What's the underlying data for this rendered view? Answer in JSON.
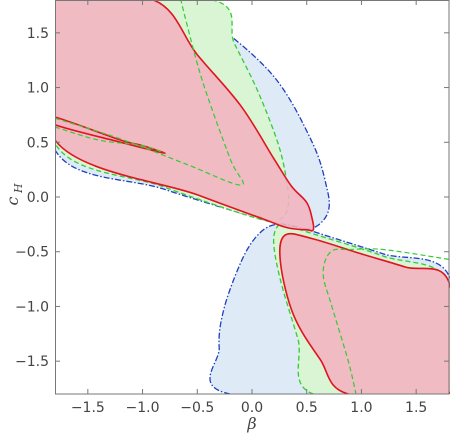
{
  "chart_data": {
    "type": "contour",
    "xlabel": "β",
    "ylabel_main": "c",
    "ylabel_sub": "H",
    "xlim": [
      -1.8,
      1.8
    ],
    "ylim": [
      -1.8,
      1.8
    ],
    "xticks": [
      -1.5,
      -1.0,
      -0.5,
      0.0,
      0.5,
      1.0,
      1.5
    ],
    "xtick_labels": [
      "−1.5",
      "−1.0",
      "−0.5",
      "0.0",
      "0.5",
      "1.0",
      "1.5"
    ],
    "yticks": [
      1.5,
      1.0,
      0.5,
      0.0,
      -0.5,
      -1.0,
      -1.5
    ],
    "ytick_labels": [
      "1.5",
      "1.0",
      "0.5",
      "0.0",
      "−0.5",
      "−1.0",
      "−1.5"
    ],
    "grid": false,
    "regions": [
      {
        "id": "blue",
        "fill": "#deebf7",
        "stroke": "#1f3fbf",
        "dash": "6,2,1.5,2",
        "polygons": [
          [
            [
              -1.8,
              1.8
            ],
            [
              -0.73,
              1.8
            ],
            [
              -0.36,
              1.6
            ],
            [
              0.2,
              1.1
            ],
            [
              0.55,
              0.5
            ],
            [
              0.68,
              0.1
            ],
            [
              0.7,
              -0.12
            ],
            [
              0.6,
              -0.26
            ],
            [
              0.45,
              -0.29
            ],
            [
              0.15,
              -0.22
            ],
            [
              -0.8,
              0.07
            ],
            [
              -1.8,
              0.43
            ]
          ],
          [
            [
              -0.2,
              -1.8
            ],
            [
              -0.3,
              -1.38
            ],
            [
              -0.25,
              -1.0
            ],
            [
              -0.08,
              -0.55
            ],
            [
              0.07,
              -0.33
            ],
            [
              0.22,
              -0.25
            ],
            [
              0.4,
              -0.27
            ],
            [
              0.7,
              -0.36
            ],
            [
              1.2,
              -0.52
            ],
            [
              1.8,
              -0.72
            ],
            [
              1.8,
              -1.8
            ]
          ]
        ]
      },
      {
        "id": "green",
        "fill": "#d9f5d4",
        "stroke": "#33cc33",
        "dash": "5,3",
        "polygons": [
          [
            [
              -1.8,
              1.8
            ],
            [
              -0.36,
              1.8
            ],
            [
              -0.16,
              1.4
            ],
            [
              0.06,
              0.95
            ],
            [
              0.25,
              0.45
            ],
            [
              0.33,
              0.05
            ],
            [
              0.32,
              -0.12
            ],
            [
              0.26,
              -0.2
            ],
            [
              0.1,
              -0.21
            ],
            [
              -0.8,
              0.09
            ],
            [
              -1.8,
              0.49
            ]
          ],
          [
            [
              0.56,
              -1.8
            ],
            [
              0.42,
              -1.3
            ],
            [
              0.27,
              -0.8
            ],
            [
              0.2,
              -0.45
            ],
            [
              0.22,
              -0.29
            ],
            [
              0.3,
              -0.26
            ],
            [
              0.6,
              -0.35
            ],
            [
              1.2,
              -0.54
            ],
            [
              1.8,
              -0.78
            ],
            [
              1.8,
              -1.8
            ]
          ]
        ]
      },
      {
        "id": "red",
        "fill": "#f4b3c0",
        "fill_opacity": 0.88,
        "stroke": "#e0141e",
        "dash": "",
        "polygons": [
          [
            [
              -1.8,
              1.8
            ],
            [
              -0.9,
              1.8
            ],
            [
              -0.5,
              1.3
            ],
            [
              -0.1,
              0.83
            ],
            [
              0.2,
              0.35
            ],
            [
              0.36,
              0.1
            ],
            [
              0.5,
              -0.05
            ],
            [
              0.55,
              -0.2
            ],
            [
              0.56,
              -0.3
            ],
            [
              0.5,
              -0.3
            ],
            [
              0.32,
              -0.28
            ],
            [
              0.1,
              -0.2
            ],
            [
              -0.5,
              0.02
            ],
            [
              -1.8,
              0.52
            ]
          ],
          [
            [
              0.88,
              -1.8
            ],
            [
              0.62,
              -1.48
            ],
            [
              0.38,
              -1.08
            ],
            [
              0.26,
              -0.6
            ],
            [
              0.3,
              -0.35
            ],
            [
              0.55,
              -0.38
            ],
            [
              1.0,
              -0.52
            ],
            [
              1.4,
              -0.64
            ],
            [
              1.8,
              -0.78
            ],
            [
              1.8,
              -1.8
            ]
          ],
          [
            [
              -1.8,
              0.73
            ],
            [
              -1.2,
              0.52
            ],
            [
              -1.0,
              0.47
            ],
            [
              -0.8,
              0.4
            ],
            [
              -1.2,
              0.5
            ],
            [
              -1.8,
              0.66
            ]
          ]
        ]
      }
    ],
    "contours": [
      {
        "id": "green-inner-contour",
        "stroke": "#33cc33",
        "dash": "5,3",
        "points": [
          [
            -1.8,
            0.72
          ],
          [
            -1.2,
            0.53
          ],
          [
            -0.6,
            0.3
          ],
          [
            -0.1,
            0.11
          ],
          [
            -0.2,
            0.35
          ],
          [
            -0.45,
            1.05
          ],
          [
            -0.6,
            1.6
          ],
          [
            -0.65,
            1.8
          ]
        ]
      },
      {
        "id": "green-inner-contour-lower",
        "stroke": "#33cc33",
        "dash": "5,3",
        "points": [
          [
            1.8,
            -0.57
          ],
          [
            1.2,
            -0.48
          ],
          [
            0.9,
            -0.48
          ],
          [
            0.72,
            -0.5
          ],
          [
            0.65,
            -0.7
          ],
          [
            0.73,
            -1.0
          ],
          [
            0.88,
            -1.5
          ],
          [
            0.95,
            -1.8
          ]
        ]
      },
      {
        "id": "green-cusp-contour",
        "stroke": "#33cc33",
        "dash": "5,3",
        "points": [
          [
            -1.8,
            0.64
          ],
          [
            -1.4,
            0.52
          ],
          [
            -1.0,
            0.47
          ],
          [
            -0.8,
            0.4
          ]
        ]
      }
    ]
  }
}
